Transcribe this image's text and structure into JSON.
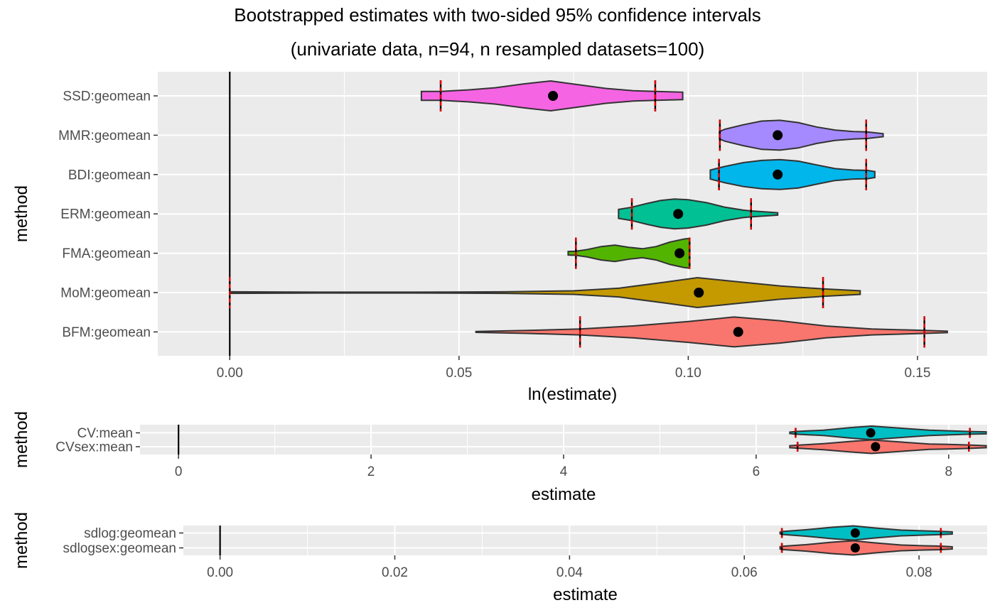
{
  "title": "Bootstrapped estimates with two-sided 95% confidence intervals",
  "subtitle": "(univariate data, n=94, n resampled datasets=100)",
  "chart_data": [
    {
      "type": "violin",
      "xlabel": "ln(estimate)",
      "ylabel": "method",
      "xlim": [
        -0.0157,
        0.1652
      ],
      "xticks": [
        0.0,
        0.05,
        0.1,
        0.15
      ],
      "xtick_labels": [
        "0.00",
        "0.05",
        "0.10",
        "0.15"
      ],
      "grid": true,
      "reference_line": 0,
      "categories": [
        "SSD:geomean",
        "MMR:geomean",
        "BDI:geomean",
        "ERM:geomean",
        "FMA:geomean",
        "MoM:geomean",
        "BFM:geomean"
      ],
      "series": [
        {
          "category": "SSD:geomean",
          "color": "#F564E3",
          "estimate": 0.0705,
          "ci_lower": 0.046,
          "ci_upper": 0.0928,
          "min": 0.0418,
          "max": 0.0988,
          "profile": [
            [
              0.0418,
              0.3
            ],
            [
              0.046,
              0.3
            ],
            [
              0.052,
              0.4
            ],
            [
              0.058,
              0.55
            ],
            [
              0.064,
              0.8
            ],
            [
              0.07,
              1.0
            ],
            [
              0.076,
              0.75
            ],
            [
              0.082,
              0.5
            ],
            [
              0.088,
              0.35
            ],
            [
              0.093,
              0.3
            ],
            [
              0.0988,
              0.25
            ]
          ]
        },
        {
          "category": "MMR:geomean",
          "color": "#A58AFF",
          "estimate": 0.1195,
          "ci_lower": 0.1069,
          "ci_upper": 0.1388,
          "min": 0.1068,
          "max": 0.1425,
          "profile": [
            [
              0.1068,
              0.25
            ],
            [
              0.108,
              0.4
            ],
            [
              0.112,
              0.7
            ],
            [
              0.116,
              0.95
            ],
            [
              0.12,
              1.0
            ],
            [
              0.124,
              0.85
            ],
            [
              0.128,
              0.55
            ],
            [
              0.132,
              0.35
            ],
            [
              0.136,
              0.25
            ],
            [
              0.139,
              0.22
            ],
            [
              0.1425,
              0.1
            ]
          ]
        },
        {
          "category": "BDI:geomean",
          "color": "#00B6EB",
          "estimate": 0.1195,
          "ci_lower": 0.1067,
          "ci_upper": 0.1388,
          "min": 0.1048,
          "max": 0.1407,
          "profile": [
            [
              0.1048,
              0.3
            ],
            [
              0.108,
              0.55
            ],
            [
              0.112,
              0.8
            ],
            [
              0.116,
              0.95
            ],
            [
              0.12,
              1.0
            ],
            [
              0.124,
              0.9
            ],
            [
              0.128,
              0.65
            ],
            [
              0.132,
              0.4
            ],
            [
              0.136,
              0.3
            ],
            [
              0.139,
              0.28
            ],
            [
              0.1407,
              0.2
            ]
          ]
        },
        {
          "category": "ERM:geomean",
          "color": "#00C094",
          "estimate": 0.0978,
          "ci_lower": 0.0877,
          "ci_upper": 0.1137,
          "min": 0.0848,
          "max": 0.1195,
          "profile": [
            [
              0.0848,
              0.3
            ],
            [
              0.0877,
              0.45
            ],
            [
              0.091,
              0.7
            ],
            [
              0.094,
              0.9
            ],
            [
              0.097,
              1.0
            ],
            [
              0.1,
              0.95
            ],
            [
              0.104,
              0.75
            ],
            [
              0.108,
              0.45
            ],
            [
              0.112,
              0.25
            ],
            [
              0.1137,
              0.2
            ],
            [
              0.1195,
              0.08
            ]
          ]
        },
        {
          "category": "FMA:geomean",
          "color": "#53B400",
          "estimate": 0.0981,
          "ci_lower": 0.0755,
          "ci_upper": 0.1003,
          "min": 0.0738,
          "max": 0.1003,
          "profile": [
            [
              0.0738,
              0.12
            ],
            [
              0.0755,
              0.14
            ],
            [
              0.078,
              0.25
            ],
            [
              0.081,
              0.45
            ],
            [
              0.084,
              0.55
            ],
            [
              0.087,
              0.4
            ],
            [
              0.09,
              0.3
            ],
            [
              0.093,
              0.45
            ],
            [
              0.096,
              0.75
            ],
            [
              0.099,
              0.95
            ],
            [
              0.1003,
              1.0
            ]
          ]
        },
        {
          "category": "MoM:geomean",
          "color": "#C49A00",
          "estimate": 0.1023,
          "ci_lower": 0.0,
          "ci_upper": 0.1294,
          "min": 0.0,
          "max": 0.1375,
          "profile": [
            [
              0.0,
              0.05
            ],
            [
              0.02,
              0.03
            ],
            [
              0.04,
              0.03
            ],
            [
              0.06,
              0.05
            ],
            [
              0.075,
              0.12
            ],
            [
              0.085,
              0.3
            ],
            [
              0.095,
              0.7
            ],
            [
              0.102,
              1.0
            ],
            [
              0.11,
              0.75
            ],
            [
              0.12,
              0.45
            ],
            [
              0.1294,
              0.25
            ],
            [
              0.1375,
              0.12
            ]
          ]
        },
        {
          "category": "BFM:geomean",
          "color": "#F8766D",
          "estimate": 0.1109,
          "ci_lower": 0.0764,
          "ci_upper": 0.1515,
          "min": 0.0537,
          "max": 0.1565,
          "profile": [
            [
              0.0537,
              0.03
            ],
            [
              0.065,
              0.1
            ],
            [
              0.0764,
              0.2
            ],
            [
              0.088,
              0.4
            ],
            [
              0.1,
              0.7
            ],
            [
              0.11,
              1.0
            ],
            [
              0.12,
              0.75
            ],
            [
              0.13,
              0.4
            ],
            [
              0.14,
              0.2
            ],
            [
              0.1515,
              0.1
            ],
            [
              0.1565,
              0.05
            ]
          ]
        }
      ]
    },
    {
      "type": "violin",
      "xlabel": "estimate",
      "ylabel": "method",
      "xlim": [
        -0.4,
        8.4
      ],
      "xticks": [
        0,
        2,
        4,
        6,
        8
      ],
      "xtick_labels": [
        "0",
        "2",
        "4",
        "6",
        "8"
      ],
      "grid": true,
      "reference_line": 0,
      "categories": [
        "CV:mean",
        "CVsex:mean"
      ],
      "series": [
        {
          "category": "CV:mean",
          "color": "#00BFC4",
          "estimate": 7.19,
          "ci_lower": 6.41,
          "ci_upper": 8.22,
          "min": 6.35,
          "max": 8.39,
          "profile": [
            [
              6.35,
              0.1
            ],
            [
              6.41,
              0.2
            ],
            [
              6.7,
              0.4
            ],
            [
              7.0,
              0.8
            ],
            [
              7.2,
              1.0
            ],
            [
              7.5,
              0.7
            ],
            [
              7.8,
              0.4
            ],
            [
              8.0,
              0.3
            ],
            [
              8.22,
              0.2
            ],
            [
              8.39,
              0.15
            ]
          ]
        },
        {
          "category": "CVsex:mean",
          "color": "#F8766D",
          "estimate": 7.24,
          "ci_lower": 6.43,
          "ci_upper": 8.21,
          "min": 6.35,
          "max": 8.39,
          "profile": [
            [
              6.35,
              0.15
            ],
            [
              6.43,
              0.22
            ],
            [
              6.7,
              0.45
            ],
            [
              7.0,
              0.8
            ],
            [
              7.2,
              1.0
            ],
            [
              7.5,
              0.7
            ],
            [
              7.8,
              0.4
            ],
            [
              8.0,
              0.35
            ],
            [
              8.21,
              0.25
            ],
            [
              8.39,
              0.15
            ]
          ]
        }
      ]
    },
    {
      "type": "violin",
      "xlabel": "estimate",
      "ylabel": "method",
      "xlim": [
        -0.0042,
        0.0878
      ],
      "xticks": [
        0.0,
        0.02,
        0.04,
        0.06,
        0.08
      ],
      "xtick_labels": [
        "0.00",
        "0.02",
        "0.04",
        "0.06",
        "0.08"
      ],
      "grid": true,
      "reference_line": 0,
      "categories": [
        "sdlog:geomean",
        "sdlogsex:geomean"
      ],
      "series": [
        {
          "category": "sdlog:geomean",
          "color": "#00BFC4",
          "estimate": 0.0727,
          "ci_lower": 0.0643,
          "ci_upper": 0.0825,
          "min": 0.0641,
          "max": 0.0838,
          "profile": [
            [
              0.0641,
              0.12
            ],
            [
              0.0643,
              0.2
            ],
            [
              0.067,
              0.45
            ],
            [
              0.07,
              0.8
            ],
            [
              0.0725,
              1.0
            ],
            [
              0.075,
              0.7
            ],
            [
              0.078,
              0.4
            ],
            [
              0.0805,
              0.3
            ],
            [
              0.0825,
              0.22
            ],
            [
              0.0838,
              0.15
            ]
          ]
        },
        {
          "category": "sdlogsex:geomean",
          "color": "#F8766D",
          "estimate": 0.0727,
          "ci_lower": 0.0643,
          "ci_upper": 0.0825,
          "min": 0.0641,
          "max": 0.0838,
          "profile": [
            [
              0.0641,
              0.15
            ],
            [
              0.0643,
              0.22
            ],
            [
              0.067,
              0.45
            ],
            [
              0.07,
              0.8
            ],
            [
              0.0725,
              1.0
            ],
            [
              0.075,
              0.7
            ],
            [
              0.078,
              0.4
            ],
            [
              0.0805,
              0.3
            ],
            [
              0.0825,
              0.25
            ],
            [
              0.0838,
              0.15
            ]
          ]
        }
      ]
    }
  ]
}
